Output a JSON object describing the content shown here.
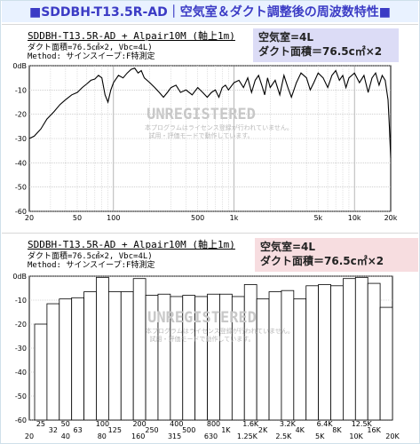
{
  "page_title": "■SDDBH-T13.5R-AD｜空気室＆ダクト調整後の周波数特性■",
  "colors": {
    "title": "#3b3bc5",
    "spec1_bg": "#dcdcf6",
    "spec2_bg": "#f7dde0"
  },
  "panel1": {
    "header_title": "SDDBH-T13.5R-AD + Alpair10M (軸上1m)",
    "header_line2": "ダクト面積=76.5㎠×2, Vbc=4L)",
    "header_line3": "Method: サインスイープ:F特測定",
    "spec_line1": "空気室=4L",
    "spec_line2": "ダクト面積＝76.5c㎡×2",
    "watermark": "UNREGISTERED",
    "watermark_note1": "本プログラムはライセンス登録が行われていません。",
    "watermark_note2": "試用・評価モードで動作しています。"
  },
  "panel2": {
    "header_title": "SDDBH-T13.5R-AD + Alpair10M (軸上1m)",
    "header_line2": "ダクト面積=76.5㎠×2, Vbc=4L)",
    "header_line3": "Method: サインスイープ:F特測定",
    "spec_line1": "空気室=4L",
    "spec_line2": "ダクト面積＝76.5c㎡×2",
    "watermark": "UNREGISTERED",
    "watermark_note1": "本プログラムはライセンス登録が行われていません。",
    "watermark_note2": "試用・評価モードで動作しています。"
  },
  "chart_data": [
    {
      "type": "line",
      "title": "SDDBH-T13.5R-AD + Alpair10M (軸上1m)",
      "xscale": "log",
      "xlim": [
        20,
        20000
      ],
      "ylim": [
        -60,
        0
      ],
      "yticks": [
        "0dB",
        "-10",
        "-20",
        "-30",
        "-40",
        "-50",
        "-60"
      ],
      "xtick_labels": [
        {
          "value": 20,
          "label": "20"
        },
        {
          "value": 50,
          "label": "50"
        },
        {
          "value": 100,
          "label": "100"
        },
        {
          "value": 500,
          "label": "500"
        },
        {
          "value": 1000,
          "label": "1k"
        },
        {
          "value": 5000,
          "label": "5k"
        },
        {
          "value": 10000,
          "label": "10k"
        },
        {
          "value": 20000,
          "label": "20k"
        }
      ],
      "grid": true,
      "series": [
        {
          "color": "#000000",
          "points": [
            [
              20,
              -30
            ],
            [
              22,
              -29
            ],
            [
              25,
              -26
            ],
            [
              28,
              -22
            ],
            [
              32,
              -19
            ],
            [
              36,
              -16
            ],
            [
              40,
              -14
            ],
            [
              45,
              -12
            ],
            [
              50,
              -11
            ],
            [
              55,
              -9
            ],
            [
              60,
              -7.5
            ],
            [
              65,
              -6
            ],
            [
              70,
              -5.5
            ],
            [
              75,
              -4
            ],
            [
              80,
              -5
            ],
            [
              85,
              -12
            ],
            [
              90,
              -15
            ],
            [
              95,
              -10
            ],
            [
              100,
              -7
            ],
            [
              110,
              -4
            ],
            [
              120,
              -5
            ],
            [
              130,
              -3
            ],
            [
              140,
              -1.5
            ],
            [
              150,
              -1
            ],
            [
              160,
              -3
            ],
            [
              170,
              -2
            ],
            [
              180,
              -5
            ],
            [
              200,
              -7
            ],
            [
              220,
              -9
            ],
            [
              240,
              -11
            ],
            [
              260,
              -13
            ],
            [
              280,
              -11
            ],
            [
              300,
              -9
            ],
            [
              330,
              -8
            ],
            [
              360,
              -11
            ],
            [
              400,
              -10
            ],
            [
              450,
              -12
            ],
            [
              500,
              -9
            ],
            [
              550,
              -11
            ],
            [
              600,
              -13
            ],
            [
              650,
              -11
            ],
            [
              700,
              -10
            ],
            [
              750,
              -13
            ],
            [
              800,
              -9
            ],
            [
              850,
              -8
            ],
            [
              900,
              -10
            ],
            [
              1000,
              -7
            ],
            [
              1100,
              -6
            ],
            [
              1200,
              -9
            ],
            [
              1300,
              -5
            ],
            [
              1400,
              -11
            ],
            [
              1500,
              -6
            ],
            [
              1600,
              -4
            ],
            [
              1700,
              -8
            ],
            [
              1800,
              -12
            ],
            [
              1900,
              -5
            ],
            [
              2000,
              -9
            ],
            [
              2200,
              -6
            ],
            [
              2400,
              -12
            ],
            [
              2600,
              -4
            ],
            [
              2800,
              -9
            ],
            [
              3000,
              -13
            ],
            [
              3300,
              -7
            ],
            [
              3600,
              -3
            ],
            [
              4000,
              -5
            ],
            [
              4300,
              -10
            ],
            [
              4600,
              -7
            ],
            [
              5000,
              -3
            ],
            [
              5500,
              -5
            ],
            [
              6000,
              -9
            ],
            [
              6500,
              -4
            ],
            [
              7000,
              -2
            ],
            [
              7500,
              -6
            ],
            [
              8000,
              -4
            ],
            [
              8500,
              -9
            ],
            [
              9000,
              -5
            ],
            [
              10000,
              -3
            ],
            [
              11000,
              -7
            ],
            [
              12000,
              -4
            ],
            [
              13000,
              -11
            ],
            [
              14000,
              -5
            ],
            [
              15000,
              -3
            ],
            [
              16000,
              -8
            ],
            [
              17000,
              -4
            ],
            [
              18000,
              -6
            ],
            [
              19000,
              -14
            ],
            [
              19500,
              -25
            ],
            [
              20000,
              -38
            ]
          ]
        }
      ]
    },
    {
      "type": "bar",
      "title": "SDDBH-T13.5R-AD + Alpair10M (軸上1m)",
      "ylim": [
        -60,
        0
      ],
      "yticks": [
        "0dB",
        "-10",
        "-20",
        "-30",
        "-40",
        "-50",
        "-60"
      ],
      "xtick_top": [
        "25",
        "",
        "50",
        "",
        "",
        "100",
        "",
        "",
        "200",
        "",
        "",
        "400",
        "",
        "",
        "800",
        "",
        "",
        "1.6K",
        "",
        "",
        "3.2K",
        "",
        "",
        "6.4K",
        "",
        "",
        "12.5K",
        ""
      ],
      "xtick_top2": [
        "",
        "32",
        "",
        "63",
        "",
        "",
        "125",
        "",
        "",
        "250",
        "",
        "",
        "500",
        "",
        "",
        "1K",
        "",
        "",
        "2K",
        "",
        "",
        "4K",
        "",
        "",
        "8K",
        "",
        "",
        "16K"
      ],
      "xtick_bottom": [
        "20",
        "",
        "40",
        "",
        "80",
        "",
        "160",
        "",
        "315",
        "",
        "630",
        "",
        "1.25K",
        "",
        "2.5K",
        "",
        "5K",
        "",
        "10K",
        "",
        "20K"
      ],
      "categories": [
        "25",
        "32",
        "40",
        "50",
        "63",
        "80",
        "100",
        "125",
        "160",
        "200",
        "250",
        "315",
        "400",
        "500",
        "630",
        "800",
        "1K",
        "1.25K",
        "1.6K",
        "2K",
        "2.5K",
        "3.2K",
        "4K",
        "5K",
        "6.4K",
        "8K",
        "10K",
        "12.5K",
        "16K"
      ],
      "values": [
        -20,
        -11.5,
        -9.5,
        -9,
        -6.5,
        -0.5,
        -6.5,
        -6.5,
        -1,
        -8,
        -7.5,
        -8.5,
        -8,
        -8.5,
        -7.5,
        -7.5,
        -8.5,
        -3.5,
        -9.5,
        -6.5,
        -6,
        -9.5,
        -4,
        -3.5,
        -4,
        -1,
        -0.5,
        -3,
        -13
      ]
    }
  ]
}
